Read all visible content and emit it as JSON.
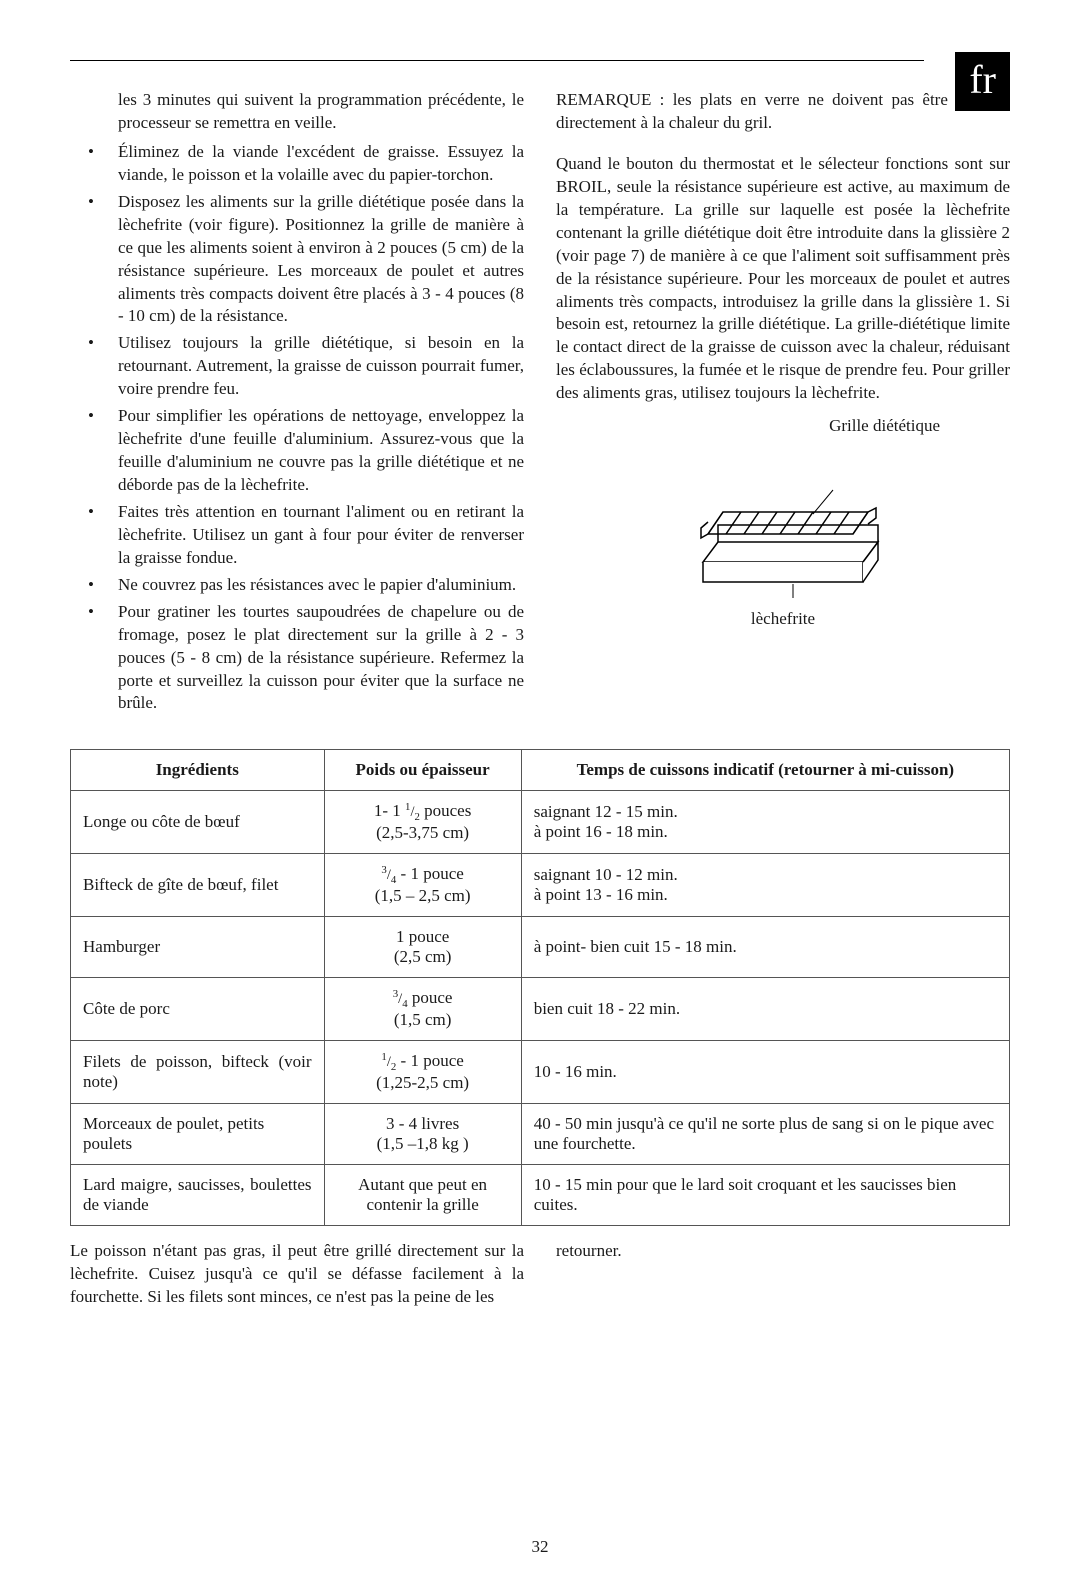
{
  "lang_tag": "fr",
  "page_number": "32",
  "left_column": {
    "intro": "les 3 minutes qui suivent la programmation précédente, le processeur se remettra en veille.",
    "bullets": [
      "Éliminez de la viande l'excédent de graisse. Essuyez la viande, le poisson et la volaille avec du papier-torchon.",
      "Disposez les aliments sur la grille diététique posée dans la lèchefrite (voir figure). Positionnez la grille de manière à ce que les aliments soient à environ à 2 pouces (5 cm) de la résistance supérieure. Les morceaux de poulet et autres aliments très compacts doivent être placés à 3 - 4 pouces (8 - 10 cm) de la résistance.",
      "Utilisez toujours la grille diététique, si besoin en la retournant. Autrement, la graisse de cuisson pourrait fumer, voire prendre feu.",
      "Pour simplifier les opérations de nettoyage, enveloppez la lèchefrite d'une feuille d'aluminium. Assurez-vous que la feuille d'aluminium ne couvre pas la grille diététique et ne déborde pas de la lèchefrite.",
      "Faites très attention en tournant l'aliment ou en retirant la lèchefrite. Utilisez un gant à four pour éviter de renverser la graisse fondue.",
      "Ne couvrez pas les résistances avec le papier d'aluminium.",
      "Pour gratiner les tourtes saupoudrées de chapelure ou de fromage, posez le plat directement sur la grille à 2 - 3 pouces (5 - 8 cm) de la résistance supérieure. Refermez la porte et surveillez la cuisson pour éviter que la surface ne brûle."
    ]
  },
  "right_column": {
    "note": "REMARQUE : les plats en verre ne doivent pas être exposés directement à la chaleur du gril.",
    "paragraph": "Quand le bouton du thermostat et le sélecteur fonctions sont sur BROIL, seule la résistance supérieure est active, au maximum de la température. La grille sur laquelle est posée la lèchefrite contenant la grille diététique doit être introduite dans la glissière 2 (voir page 7) de manière à ce que l'aliment soit suffisamment près de la résistance supérieure.  Pour les morceaux de poulet et autres aliments très compacts, introduisez la grille dans la glissière 1. Si besoin est, retournez la grille diététique. La grille-diététique limite le contact direct de la graisse de cuisson avec la chaleur, réduisant les éclaboussures, la fumée et le risque de prendre feu. Pour griller des aliments gras, utilisez toujours la lèchefrite.",
    "figure_top_label": "Grille diététique",
    "figure_bottom_label": "lèchefrite"
  },
  "table": {
    "headers": [
      "Ingrédients",
      "Poids ou épaisseur",
      "Temps de cuissons indicatif (retourner à mi-cuisson)"
    ],
    "rows": [
      {
        "ing": "Longe ou côte de bœuf",
        "wt": "1- 1 ½ pouces (2,5-3,75 cm)",
        "time": "saignant 12 - 15 min.\nà point 16 - 18 min."
      },
      {
        "ing": "Bifteck de gîte de bœuf, filet",
        "wt": "¾ - 1 pouce (1,5 – 2,5 cm)",
        "time": "saignant 10 - 12 min.\nà point 13 - 16 min."
      },
      {
        "ing": "Hamburger",
        "wt": "1 pouce (2,5 cm)",
        "time": "à point- bien cuit  15 - 18 min."
      },
      {
        "ing": "Côte de porc",
        "wt": "¾ pouce (1,5 cm)",
        "time": "bien cuit 18 - 22 min."
      },
      {
        "ing": "Filets de poisson, bifteck (voir note)",
        "wt": "½ - 1 pouce (1,25-2,5 cm)",
        "time": "10 - 16 min.",
        "justify": true
      },
      {
        "ing": "Morceaux de poulet, petits poulets",
        "wt": "3 - 4 livres (1,5 –1,8 kg )",
        "time": "40 - 50 min jusqu'à ce qu'il ne sorte plus de sang si on le pique avec une fourchette."
      },
      {
        "ing": "Lard maigre, saucisses, boulettes de viande",
        "wt": "Autant que peut en contenir la grille",
        "time": "10 - 15 min pour que le lard soit croquant et les saucisses bien cuites.",
        "justify": true
      }
    ]
  },
  "footnote": {
    "left": "Le poisson n'étant pas gras, il peut être grillé directement sur la lèchefrite. Cuisez jusqu'à ce qu'il se défasse facilement à la fourchette. Si les filets sont minces, ce n'est pas la peine de les",
    "right": "retourner."
  }
}
